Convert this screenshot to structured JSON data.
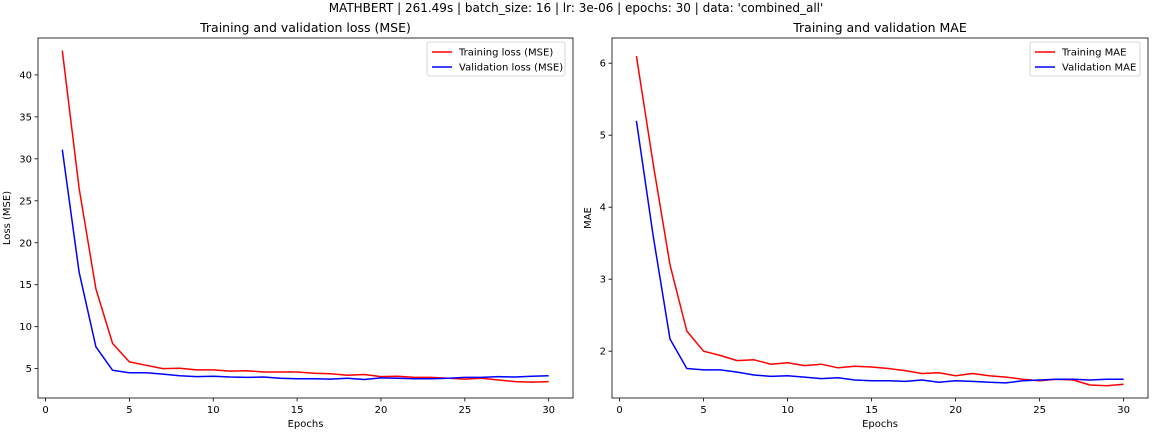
{
  "figure": {
    "suptitle": "MATHBERT | 261.49s | batch_size: 16 | lr: 3e-06 | epochs: 30 | data: 'combined_all'"
  },
  "chart_data": [
    {
      "type": "line",
      "title": "Training and validation loss (MSE)",
      "xlabel": "Epochs",
      "ylabel": "Loss (MSE)",
      "xlim": [
        -0.45,
        31.45
      ],
      "ylim": [
        1.5,
        44.4
      ],
      "xticks": [
        0,
        5,
        10,
        15,
        20,
        25,
        30
      ],
      "yticks": [
        5,
        10,
        15,
        20,
        25,
        30,
        35,
        40
      ],
      "grid": false,
      "legend_position": "top-right",
      "x": [
        1,
        2,
        3,
        4,
        5,
        6,
        7,
        8,
        9,
        10,
        11,
        12,
        13,
        14,
        15,
        16,
        17,
        18,
        19,
        20,
        21,
        22,
        23,
        24,
        25,
        26,
        27,
        28,
        29,
        30
      ],
      "series": [
        {
          "name": "Training loss (MSE)",
          "color": "#ff0000",
          "values": [
            42.9,
            26.5,
            14.5,
            8.0,
            5.8,
            5.4,
            5.0,
            5.05,
            4.85,
            4.85,
            4.7,
            4.75,
            4.6,
            4.6,
            4.6,
            4.45,
            4.4,
            4.2,
            4.3,
            4.05,
            4.1,
            3.95,
            3.95,
            3.85,
            3.75,
            3.85,
            3.65,
            3.45,
            3.4,
            3.45
          ]
        },
        {
          "name": "Validation loss (MSE)",
          "color": "#0000ff",
          "values": [
            31.1,
            16.5,
            7.6,
            4.8,
            4.5,
            4.5,
            4.35,
            4.15,
            4.05,
            4.1,
            4.0,
            3.95,
            4.0,
            3.85,
            3.8,
            3.8,
            3.75,
            3.85,
            3.7,
            3.9,
            3.85,
            3.8,
            3.8,
            3.85,
            3.95,
            3.95,
            4.05,
            4.0,
            4.1,
            4.15
          ]
        }
      ]
    },
    {
      "type": "line",
      "title": "Training and validation MAE",
      "xlabel": "Epochs",
      "ylabel": "MAE",
      "xlim": [
        -0.45,
        31.45
      ],
      "ylim": [
        1.35,
        6.35
      ],
      "xticks": [
        0,
        5,
        10,
        15,
        20,
        25,
        30
      ],
      "yticks": [
        2,
        3,
        4,
        5,
        6
      ],
      "grid": false,
      "legend_position": "top-right",
      "x": [
        1,
        2,
        3,
        4,
        5,
        6,
        7,
        8,
        9,
        10,
        11,
        12,
        13,
        14,
        15,
        16,
        17,
        18,
        19,
        20,
        21,
        22,
        23,
        24,
        25,
        26,
        27,
        28,
        29,
        30
      ],
      "series": [
        {
          "name": "Training MAE",
          "color": "#ff0000",
          "values": [
            6.1,
            4.6,
            3.2,
            2.28,
            2.0,
            1.94,
            1.87,
            1.88,
            1.82,
            1.84,
            1.8,
            1.82,
            1.77,
            1.79,
            1.78,
            1.76,
            1.73,
            1.69,
            1.7,
            1.66,
            1.69,
            1.66,
            1.64,
            1.61,
            1.59,
            1.61,
            1.6,
            1.53,
            1.52,
            1.54
          ]
        },
        {
          "name": "Validation MAE",
          "color": "#0000ff",
          "values": [
            5.2,
            3.6,
            2.17,
            1.76,
            1.74,
            1.74,
            1.71,
            1.67,
            1.65,
            1.66,
            1.64,
            1.62,
            1.63,
            1.6,
            1.59,
            1.59,
            1.58,
            1.6,
            1.57,
            1.59,
            1.58,
            1.57,
            1.56,
            1.59,
            1.6,
            1.61,
            1.61,
            1.6,
            1.61,
            1.61
          ]
        }
      ]
    }
  ]
}
